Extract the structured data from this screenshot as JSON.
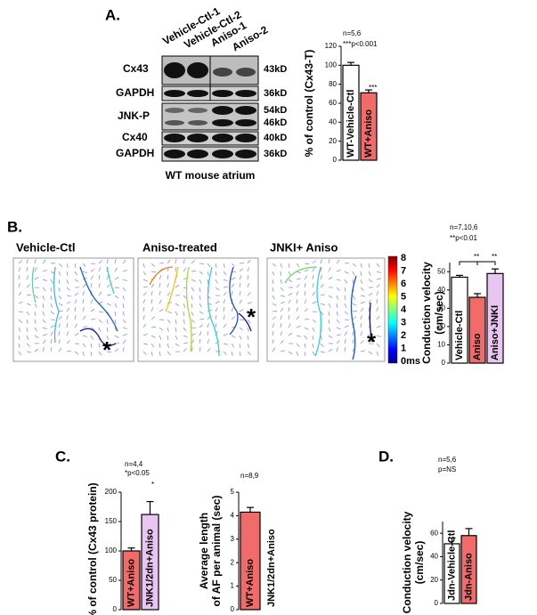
{
  "panels": {
    "letters": [
      "A.",
      "B.",
      "C.",
      "D."
    ]
  },
  "blot": {
    "columns": [
      "Vehicle-Ctl-1",
      "Vehicle-Ctl-2",
      "Aniso-1",
      "Aniso-2"
    ],
    "rows": [
      "Cx43",
      "GAPDH",
      "JNK-P",
      "Cx40",
      "GAPDH"
    ],
    "sizes": [
      "43kD",
      "36kD",
      "54kD",
      "46kD",
      "40kD",
      "36kD"
    ],
    "caption": "WT mouse atrium"
  },
  "maps": {
    "titles": [
      "Vehicle-Ctl",
      "Aniso-treated",
      "JNKI+ Aniso"
    ],
    "colorbar": [
      "8",
      "7",
      "6",
      "5",
      "4",
      "3",
      "2",
      "1",
      "0ms"
    ]
  },
  "chart_data": [
    {
      "type": "bar",
      "ylabel": "% of control (Cx43-T)",
      "categories": [
        "WT-Vehicle-Ctl",
        "WT+Aniso"
      ],
      "values": [
        100,
        71
      ],
      "errors": [
        3,
        3
      ],
      "colors": [
        "#ffffff",
        "#f26b6b"
      ],
      "ylim": [
        0,
        120
      ],
      "yticks": [
        0,
        20,
        40,
        60,
        80,
        100,
        120
      ],
      "annotations": [
        "n=5,6",
        "***p<0.001",
        "***"
      ]
    },
    {
      "type": "bar",
      "ylabel": [
        "Conduction velocity",
        "(cm/sec)"
      ],
      "categories": [
        "Vehicle-Ctl",
        "Aniso",
        "Aniso+JNKI"
      ],
      "values": [
        47,
        36,
        49
      ],
      "errors": [
        1,
        2,
        2.5
      ],
      "colors": [
        "#ffffff",
        "#f26b6b",
        "#e9c6f2"
      ],
      "ylim": [
        0,
        55
      ],
      "yticks": [
        0,
        10,
        20,
        30,
        40,
        50
      ],
      "annotations": [
        "n=7,10,6",
        "**p<0.01",
        "**",
        "**"
      ]
    },
    {
      "type": "bar",
      "ylabel": "% of control (Cx43 protein)",
      "categories": [
        "WT+Aniso",
        "JNK1/2dn+Aniso"
      ],
      "values": [
        100,
        162
      ],
      "errors": [
        5,
        22
      ],
      "colors": [
        "#f26b6b",
        "#e9c6f2"
      ],
      "ylim": [
        0,
        200
      ],
      "yticks": [
        0,
        50,
        100,
        150,
        200
      ],
      "annotations": [
        "n=4,4",
        "*p<0.05",
        "*"
      ]
    },
    {
      "type": "bar",
      "ylabel": [
        "Average length",
        "of AF per animal (sec)"
      ],
      "categories": [
        "WT+Aniso",
        "JNK1/2dn+Aniso"
      ],
      "values": [
        4.15,
        0
      ],
      "errors": [
        0.2,
        null
      ],
      "colors": [
        "#f26b6b",
        "#ffffff"
      ],
      "ylim": [
        0,
        5
      ],
      "yticks": [
        0,
        1,
        2,
        3,
        4,
        5
      ],
      "annotations": [
        "n=8,9"
      ]
    },
    {
      "type": "bar",
      "ylabel": [
        "Conduction velocity",
        "(cm/sec)"
      ],
      "categories": [
        "Jdn-Vehicle-Ctl",
        "Jdn-Aniso"
      ],
      "values": [
        51,
        58
      ],
      "errors": [
        5,
        6
      ],
      "colors": [
        "#ffffff",
        "#f26b6b"
      ],
      "ylim": [
        0,
        70
      ],
      "yticks": [
        0,
        20,
        40,
        60
      ],
      "annotations": [
        "n=5,6",
        "p=NS"
      ]
    }
  ]
}
